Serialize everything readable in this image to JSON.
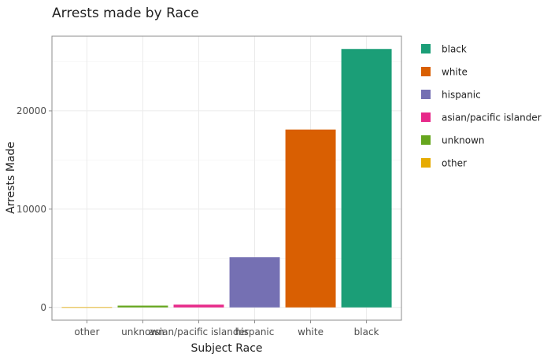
{
  "chart_data": {
    "type": "bar",
    "title": "Arrests made by Race",
    "xlabel": "Subject Race",
    "ylabel": "Arrests Made",
    "categories": [
      "other",
      "unknown",
      "asian/pacific islander",
      "hispanic",
      "white",
      "black"
    ],
    "values": [
      60,
      180,
      280,
      5100,
      18100,
      26300
    ],
    "colors": [
      "#E6AB02",
      "#66A61E",
      "#E7298A",
      "#7570B3",
      "#D95F02",
      "#1B9E77"
    ],
    "bar_fill_opacity": [
      0.55,
      1,
      1,
      1,
      1,
      1
    ],
    "ylim": [
      -1300,
      27600
    ],
    "yticks": [
      0,
      10000,
      20000
    ],
    "grid": true,
    "legend": {
      "placement": "right",
      "entries": [
        {
          "label": "black",
          "color": "#1B9E77"
        },
        {
          "label": "white",
          "color": "#D95F02"
        },
        {
          "label": "hispanic",
          "color": "#7570B3"
        },
        {
          "label": "asian/pacific islander",
          "color": "#E7298A"
        },
        {
          "label": "unknown",
          "color": "#66A61E"
        },
        {
          "label": "other",
          "color": "#E6AB02"
        }
      ]
    }
  }
}
